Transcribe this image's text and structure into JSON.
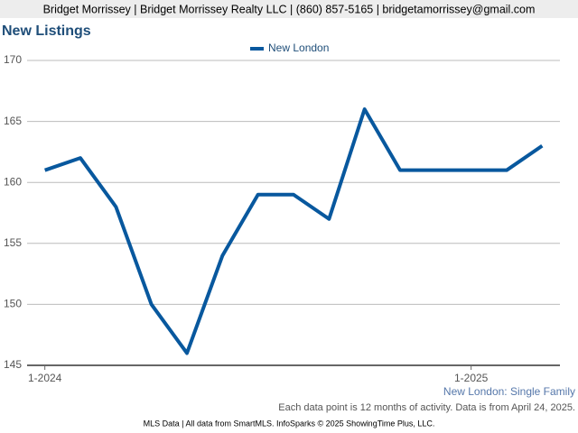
{
  "header": "Bridget Morrissey | Bridget Morrissey Realty LLC | (860) 857-5165 | bridgetamorrissey@gmail.com",
  "chart_data": {
    "type": "line",
    "title": "New Listings",
    "categories": [
      "1-2024",
      null,
      null,
      null,
      null,
      null,
      null,
      null,
      null,
      null,
      null,
      null,
      "1-2025",
      null,
      null
    ],
    "series": [
      {
        "name": "New London",
        "color": "#08589e",
        "values": [
          161,
          162,
          158,
          150,
          146,
          154,
          159,
          159,
          157,
          166,
          161,
          161,
          161,
          161,
          163
        ]
      }
    ],
    "ylim": [
      145,
      170
    ],
    "yticks": [
      145,
      150,
      155,
      160,
      165,
      170
    ],
    "grid": true,
    "legend": "top"
  },
  "footer": {
    "subtitle": "New London: Single Family",
    "note": "Each data point is 12 months of activity. Data is from April 24, 2025.",
    "credit": "MLS Data | All data from SmartMLS. InfoSparks © 2025 ShowingTime Plus, LLC."
  }
}
